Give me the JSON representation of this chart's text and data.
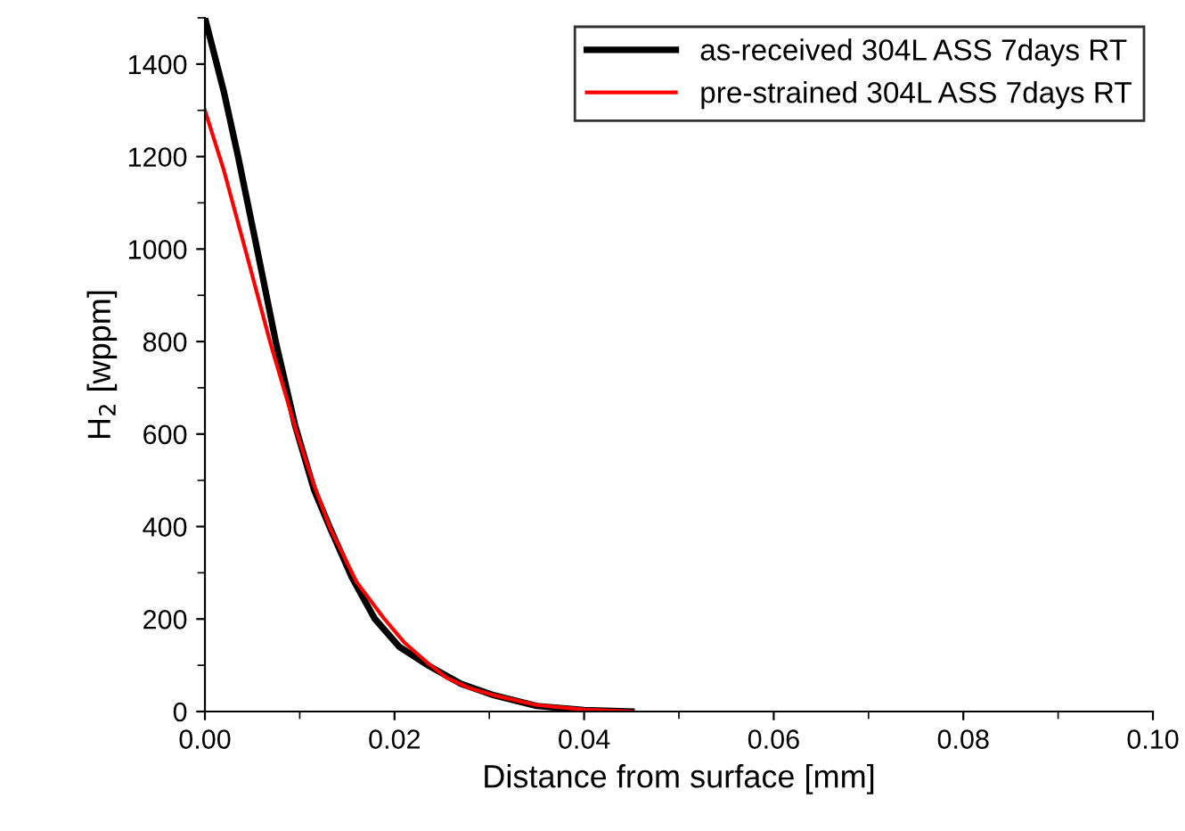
{
  "chart_data": {
    "type": "line",
    "xlabel": "Distance from surface [mm]",
    "ylabel": "H$_{2}$ [wppm]",
    "xlim": [
      0,
      0.1
    ],
    "xticks": [
      {
        "value": 0,
        "label": "0.00"
      },
      {
        "value": 0.02,
        "label": "0.02"
      },
      {
        "value": 0.04,
        "label": "0.04"
      },
      {
        "value": 0.06,
        "label": "0.06"
      },
      {
        "value": 0.08,
        "label": "0.08"
      },
      {
        "value": 0.1,
        "label": "0.10"
      }
    ],
    "ylim": [
      0,
      1500
    ],
    "yticks": [
      0,
      200,
      400,
      600,
      800,
      1000,
      1200,
      1400
    ],
    "legend": "top right",
    "grid": false,
    "series": [
      {
        "name": "as-received 304L ASS 7days RT",
        "color": "#000000",
        "x": [
          0,
          0.002,
          0.0035,
          0.0055,
          0.0075,
          0.0095,
          0.0115,
          0.0132,
          0.0155,
          0.0179,
          0.0205,
          0.0236,
          0.027,
          0.0305,
          0.035,
          0.04,
          0.045
        ],
        "values": [
          1500,
          1340,
          1200,
          1000,
          797,
          620,
          480,
          397,
          290,
          201,
          140,
          99,
          60,
          35,
          12,
          3,
          0
        ]
      },
      {
        "name": "pre-strained 304L ASS 7days RT",
        "color": "#ff0000",
        "x": [
          0,
          0.002,
          0.0043,
          0.0069,
          0.00975,
          0.0115,
          0.0132,
          0.016,
          0.0189,
          0.021,
          0.0235,
          0.0255,
          0.028,
          0.0305,
          0.035,
          0.04,
          0.045
        ],
        "values": [
          1300,
          1170,
          996,
          797,
          599,
          490,
          397,
          280,
          201,
          150,
          105,
          73,
          50,
          35,
          14,
          4,
          0
        ]
      }
    ]
  }
}
